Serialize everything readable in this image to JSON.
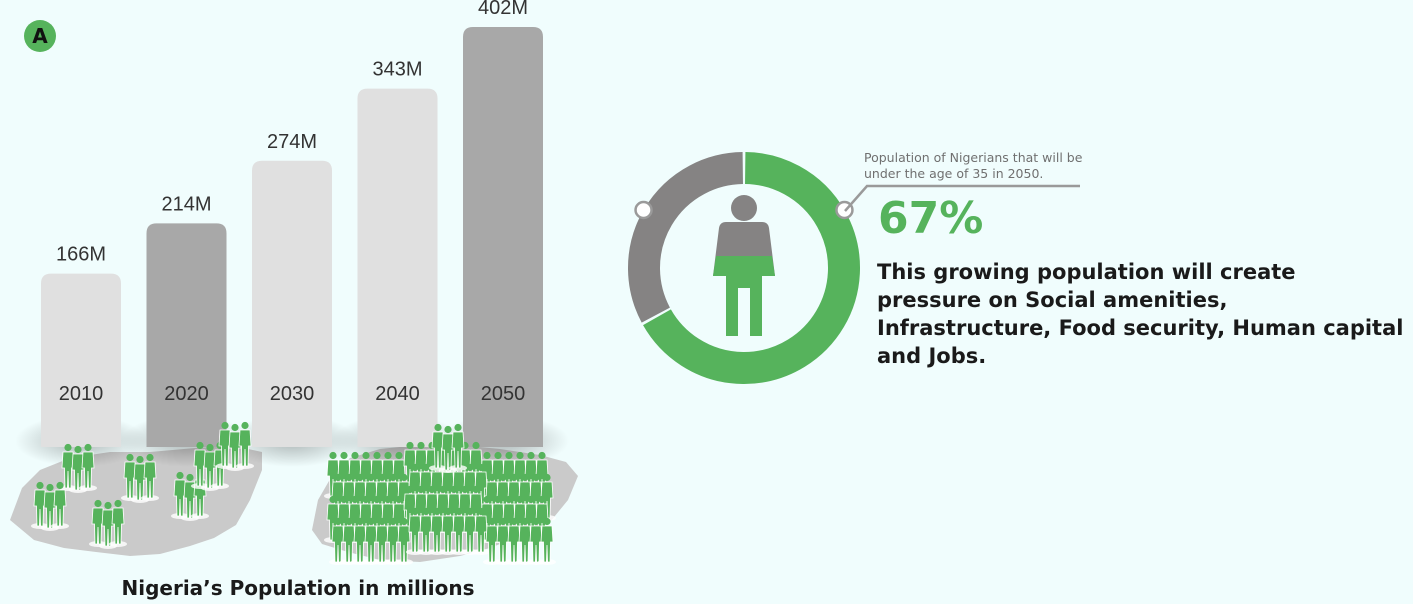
{
  "badge": "A",
  "chart_data": {
    "type": "bar",
    "title": "Nigeria’s Population in millions",
    "categories": [
      "2010",
      "2020",
      "2030",
      "2040",
      "2050"
    ],
    "values": [
      166,
      214,
      274,
      343,
      402
    ],
    "value_labels": [
      "166M",
      "214M",
      "274M",
      "343M",
      "402M"
    ],
    "unit": "M",
    "bar_colors": [
      "#e0e0e0",
      "#a8a8a8",
      "#e0e0e0",
      "#e0e0e0",
      "#a8a8a8"
    ]
  },
  "donut": {
    "percent": 67,
    "percent_label": "67%",
    "callout": "Population of Nigerians that will be under the age of 35 in 2050.",
    "colors": {
      "share": "#56b35c",
      "rest": "#858383",
      "person_top": "#858383",
      "person_bottom": "#56b35c"
    }
  },
  "body_text": "This growing population will create pressure on Social amenities, Infrastructure, Food security, Human capital and Jobs.",
  "colors": {
    "background": "#f0fdfd",
    "green": "#56b35c",
    "map": "#c9c9c9"
  },
  "icons": [
    "nigeria-map-illustration",
    "people-crowd-illustration",
    "person-icon"
  ]
}
